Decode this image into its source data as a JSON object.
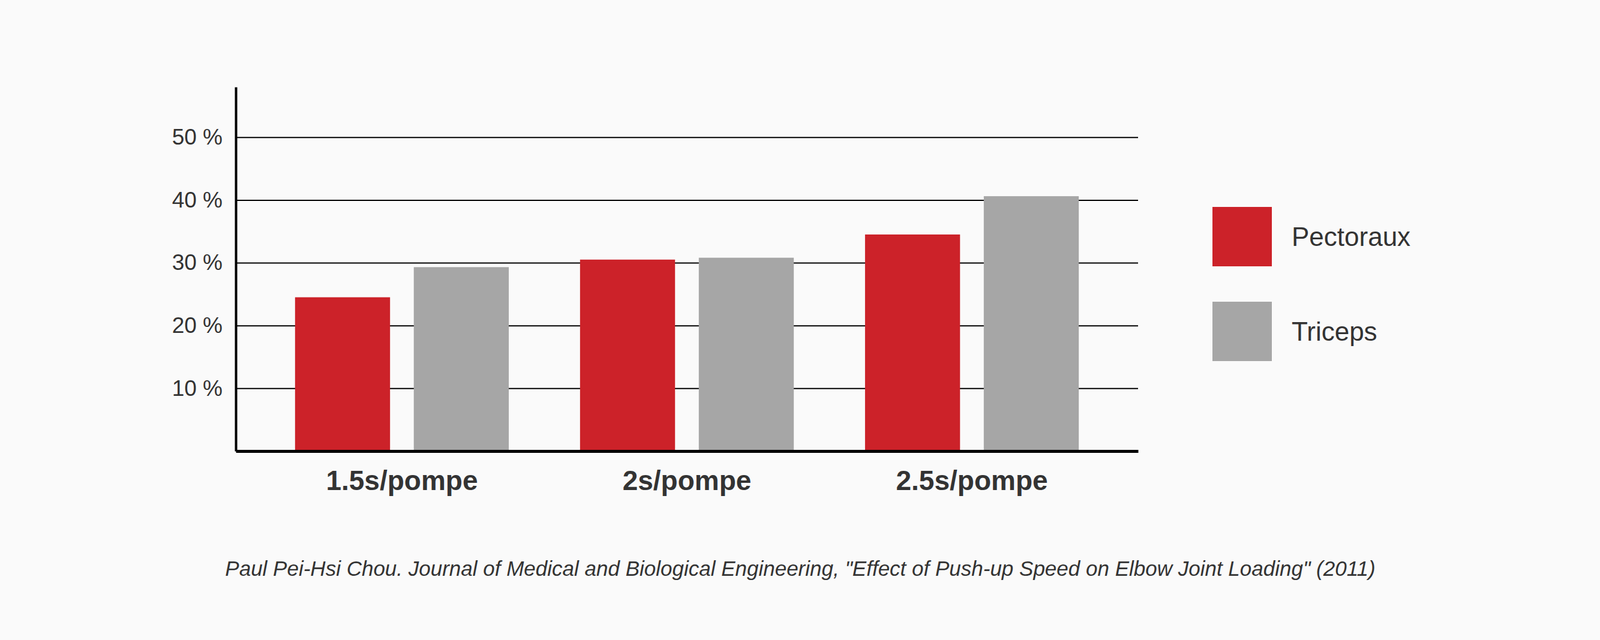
{
  "chart_data": {
    "type": "bar",
    "categories": [
      "1.5s/pompe",
      "2s/pompe",
      "2.5s/pompe"
    ],
    "series": [
      {
        "name": "Pectoraux",
        "color": "#cc2229",
        "values": [
          24.5,
          30.5,
          34.5
        ]
      },
      {
        "name": "Triceps",
        "color": "#a6a6a6",
        "values": [
          29.3,
          30.8,
          40.6
        ]
      }
    ],
    "ylim": [
      0,
      58
    ],
    "yticks": [
      {
        "value": 10,
        "label": "10 %"
      },
      {
        "value": 20,
        "label": "20 %"
      },
      {
        "value": 30,
        "label": "30 %"
      },
      {
        "value": 40,
        "label": "40 %"
      },
      {
        "value": 50,
        "label": "50 %"
      }
    ],
    "grid": true,
    "legend": "right",
    "caption": "Paul Pei-Hsi Chou. Journal of Medical and Biological Engineering, \"Effect of Push-up Speed on Elbow Joint Loading\" (2011)"
  }
}
